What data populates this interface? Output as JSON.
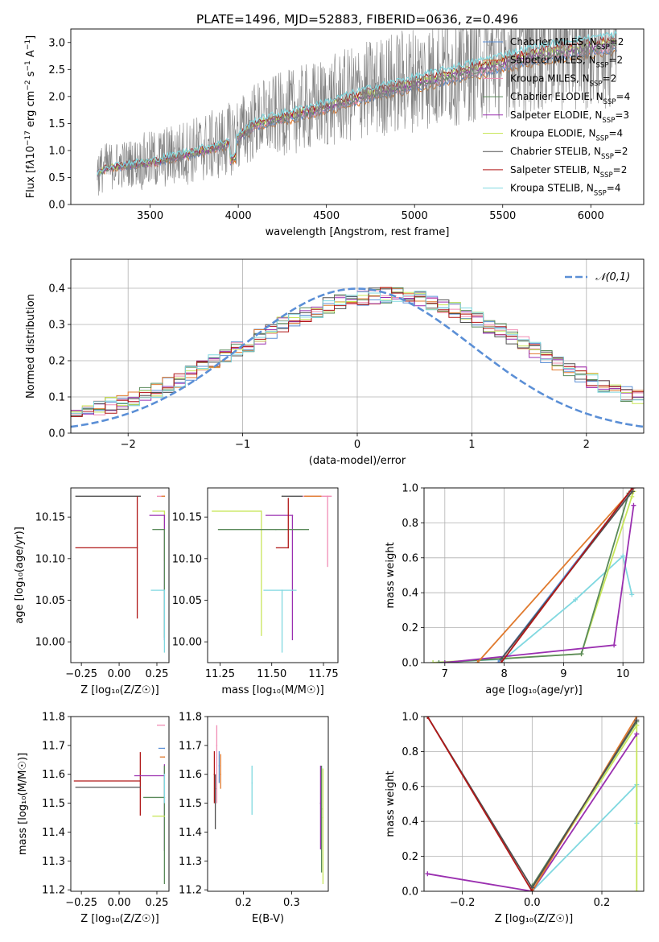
{
  "title": "PLATE=1496, MJD=52883, FIBERID=0636, z=0.496",
  "colors": {
    "Chabrier MILES": "#5b8fd6",
    "Salpeter MILES": "#e07a2e",
    "Kroupa MILES": "#f08cb4",
    "Chabrier ELODIE": "#5a8a5a",
    "Salpeter ELODIE": "#9a2fb0",
    "Kroupa ELODIE": "#c8e65a",
    "Chabrier STELIB": "#505050",
    "Salpeter STELIB": "#b01818",
    "Kroupa STELIB": "#80d8e0"
  },
  "chart_data": [
    {
      "id": "spectrum",
      "type": "line",
      "xlabel": "wavelength [Angstrom, rest frame]",
      "ylabel_html": "Flux [f<tspan font-style='italic'>λ</tspan>10<tspan baseline-shift='super' font-size='9'>−17</tspan> erg cm<tspan baseline-shift='super' font-size='9'>−2</tspan> s<tspan baseline-shift='super' font-size='9'>−1</tspan> A<tspan baseline-shift='super' font-size='9'>−1</tspan>]",
      "xlim": [
        3050,
        6300
      ],
      "ylim": [
        0,
        3.25
      ],
      "xticks": [
        3500,
        4000,
        4500,
        5000,
        5500,
        6000
      ],
      "yticks": [
        0.0,
        0.5,
        1.0,
        1.5,
        2.0,
        2.5,
        3.0
      ],
      "ytick_labels": [
        "0.0",
        "0.5",
        "1.0",
        "1.5",
        "2.0",
        "2.5",
        "3.0"
      ],
      "legend_placement": "upper right",
      "legend": [
        {
          "label": "Chabrier MILES, N",
          "sub": "SSP",
          "suffix": "=2",
          "key": "Chabrier MILES"
        },
        {
          "label": "Salpeter MILES, N",
          "sub": "SSP",
          "suffix": "=2",
          "key": "Salpeter MILES"
        },
        {
          "label": "Kroupa MILES, N",
          "sub": "SSP",
          "suffix": "=2",
          "key": "Kroupa MILES"
        },
        {
          "label": "Chabrier ELODIE, N",
          "sub": "SSP",
          "suffix": "=4",
          "key": "Chabrier ELODIE"
        },
        {
          "label": "Salpeter ELODIE, N",
          "sub": "SSP",
          "suffix": "=3",
          "key": "Salpeter ELODIE"
        },
        {
          "label": "Kroupa ELODIE, N",
          "sub": "SSP",
          "suffix": "=4",
          "key": "Kroupa ELODIE"
        },
        {
          "label": "Chabrier STELIB, N",
          "sub": "SSP",
          "suffix": "=2",
          "key": "Chabrier STELIB"
        },
        {
          "label": "Salpeter STELIB, N",
          "sub": "SSP",
          "suffix": "=2",
          "key": "Salpeter STELIB"
        },
        {
          "label": "Kroupa STELIB, N",
          "sub": "SSP",
          "suffix": "=4",
          "key": "Kroupa STELIB"
        }
      ],
      "data_range": {
        "x": [
          3200,
          6150
        ]
      },
      "continuum_anchors": {
        "x": [
          3200,
          3250,
          3400,
          3500,
          3700,
          3900,
          4000,
          4100,
          4300,
          4500,
          4700,
          4900,
          5100,
          5300,
          5500,
          5700,
          5900,
          6150
        ],
        "y": [
          0.55,
          0.65,
          0.72,
          0.75,
          0.9,
          1.05,
          1.2,
          1.45,
          1.6,
          1.75,
          1.95,
          2.1,
          2.25,
          2.4,
          2.55,
          2.7,
          2.8,
          2.9
        ]
      }
    },
    {
      "id": "residuals",
      "type": "histogram",
      "xlabel": "(data-model)/error",
      "ylabel": "Normed distribution",
      "xlim": [
        -2.5,
        2.5
      ],
      "ylim": [
        0,
        0.48
      ],
      "xticks": [
        -2,
        -1,
        0,
        1,
        2
      ],
      "xtick_labels": [
        "−2",
        "−1",
        "0",
        "1",
        "2"
      ],
      "yticks": [
        0.0,
        0.1,
        0.2,
        0.3,
        0.4
      ],
      "ytick_labels": [
        "0.0",
        "0.1",
        "0.2",
        "0.3",
        "0.4"
      ],
      "grid": true,
      "legend_placement": "upper right",
      "reference_curve": {
        "label": "𝒩(0,1)",
        "style": "dashed",
        "color": "#5b8fd6"
      },
      "bins": 50
    },
    {
      "id": "age_vs_Z",
      "type": "errorbar",
      "xlabel": "Z [log₁₀(Z/Z☉)]",
      "ylabel": "age  [log₁₀(age/yr)]",
      "xlim": [
        -0.32,
        0.33
      ],
      "ylim": [
        9.975,
        10.185
      ],
      "xticks": [
        -0.25,
        0.0,
        0.25
      ],
      "xtick_labels": [
        "−0.25",
        "0.00",
        "0.25"
      ],
      "yticks": [
        10.0,
        10.05,
        10.1,
        10.15
      ],
      "ytick_labels": [
        "10.00",
        "10.05",
        "10.10",
        "10.15"
      ],
      "points": [
        {
          "key": "Chabrier STELIB",
          "x": 0.14,
          "xerr": [
            0.43,
            0.0
          ],
          "y": 10.175,
          "yerr": [
            0.0,
            0.0
          ]
        },
        {
          "key": "Salpeter STELIB",
          "x": 0.12,
          "xerr": [
            0.41,
            0.0
          ],
          "y": 10.113,
          "yerr": [
            0.085,
            0.062
          ]
        },
        {
          "key": "Kroupa MILES",
          "x": 0.3,
          "xerr": [
            0.05,
            0.0
          ],
          "y": 10.175,
          "yerr": [
            0.0,
            0.0
          ]
        },
        {
          "key": "Kroupa ELODIE",
          "x": 0.3,
          "xerr": [
            0.08,
            0.0
          ],
          "y": 10.157,
          "yerr": [
            0.06,
            0.0
          ]
        },
        {
          "key": "Salpeter ELODIE",
          "x": 0.3,
          "xerr": [
            0.1,
            0.0
          ],
          "y": 10.152,
          "yerr": [
            0.15,
            0.0
          ]
        },
        {
          "key": "Chabrier ELODIE",
          "x": 0.3,
          "xerr": [
            0.08,
            0.0
          ],
          "y": 10.135,
          "yerr": [
            0.13,
            0.0
          ]
        },
        {
          "key": "Kroupa STELIB",
          "x": 0.3,
          "xerr": [
            0.09,
            0.0
          ],
          "y": 10.062,
          "yerr": [
            0.075,
            0.0
          ]
        },
        {
          "key": "Salpeter MILES",
          "x": 0.3,
          "xerr": [
            0.02,
            0.0
          ],
          "y": 10.175,
          "yerr": [
            0.0,
            0.0
          ]
        }
      ]
    },
    {
      "id": "age_vs_mass",
      "type": "errorbar",
      "xlabel": "mass [log₁₀(M/M☉)]",
      "xlim": [
        11.19,
        11.82
      ],
      "ylim": [
        9.975,
        10.185
      ],
      "xticks": [
        11.25,
        11.5,
        11.75
      ],
      "xtick_labels": [
        "11.25",
        "11.50",
        "11.75"
      ],
      "yticks": [
        10.0,
        10.05,
        10.1,
        10.15
      ],
      "ytick_labels": [
        "10.00",
        "10.05",
        "10.10",
        "10.15"
      ],
      "points": [
        {
          "key": "Chabrier STELIB",
          "x": 11.55,
          "xerr": [
            0.0,
            0.1
          ],
          "y": 10.175,
          "yerr": [
            0.0,
            0.0
          ]
        },
        {
          "key": "Kroupa MILES",
          "x": 11.77,
          "xerr": [
            0.12,
            0.02
          ],
          "y": 10.175,
          "yerr": [
            0.085,
            0.0
          ]
        },
        {
          "key": "Salpeter MILES",
          "x": 11.66,
          "xerr": [
            0.0,
            0.08
          ],
          "y": 10.175,
          "yerr": [
            0.0,
            0.0
          ]
        },
        {
          "key": "Kroupa ELODIE",
          "x": 11.45,
          "xerr": [
            0.24,
            0.0
          ],
          "y": 10.157,
          "yerr": [
            0.15,
            0.0
          ]
        },
        {
          "key": "Salpeter ELODIE",
          "x": 11.6,
          "xerr": [
            0.13,
            0.0
          ],
          "y": 10.152,
          "yerr": [
            0.15,
            0.0
          ]
        },
        {
          "key": "Chabrier ELODIE",
          "x": 11.52,
          "xerr": [
            0.28,
            0.16
          ],
          "y": 10.135,
          "yerr": [
            0.0,
            0.0
          ]
        },
        {
          "key": "Salpeter STELIB",
          "x": 11.58,
          "xerr": [
            0.06,
            0.0
          ],
          "y": 10.113,
          "yerr": [
            0.0,
            0.06
          ]
        },
        {
          "key": "Kroupa STELIB",
          "x": 11.55,
          "xerr": [
            0.09,
            0.07
          ],
          "y": 10.062,
          "yerr": [
            0.075,
            0.0
          ]
        }
      ]
    },
    {
      "id": "massweight_vs_age",
      "type": "line",
      "xlabel": "age  [log₁₀(age/yr)]",
      "ylabel": "mass weight",
      "xlim": [
        6.65,
        10.35
      ],
      "ylim": [
        0.0,
        1.0
      ],
      "xticks": [
        7,
        8,
        9,
        10
      ],
      "yticks": [
        0.0,
        0.2,
        0.4,
        0.6,
        0.8,
        1.0
      ],
      "ytick_labels": [
        "0.0",
        "0.2",
        "0.4",
        "0.6",
        "0.8",
        "1.0"
      ],
      "grid": true,
      "series": [
        {
          "key": "Kroupa STELIB",
          "x": [
            6.8,
            8.0,
            9.2,
            10.0,
            10.15
          ],
          "y": [
            0.0,
            0.02,
            0.36,
            0.61,
            0.39
          ]
        },
        {
          "key": "Kroupa ELODIE",
          "x": [
            6.8,
            9.3,
            10.15,
            10.18
          ],
          "y": [
            0.0,
            0.05,
            0.95,
            0.98
          ]
        },
        {
          "key": "Chabrier ELODIE",
          "x": [
            6.9,
            9.3,
            10.1
          ],
          "y": [
            0.0,
            0.05,
            0.97
          ]
        },
        {
          "key": "Salpeter ELODIE",
          "x": [
            7.0,
            9.85,
            10.18
          ],
          "y": [
            0.0,
            0.1,
            0.9
          ]
        },
        {
          "key": "Salpeter MILES",
          "x": [
            7.55,
            10.18
          ],
          "y": [
            0.0,
            1.0
          ]
        },
        {
          "key": "Chabrier MILES",
          "x": [
            7.9,
            10.17
          ],
          "y": [
            0.0,
            1.0
          ]
        },
        {
          "key": "Chabrier STELIB",
          "x": [
            7.95,
            10.16
          ],
          "y": [
            0.02,
            0.98
          ]
        },
        {
          "key": "Salpeter STELIB",
          "x": [
            7.95,
            10.16
          ],
          "y": [
            0.0,
            1.0
          ]
        }
      ]
    },
    {
      "id": "mass_vs_Z",
      "type": "errorbar",
      "xlabel": "Z [log₁₀(Z/Z☉)]",
      "ylabel": "mass [log₁₀(M/M☉)]",
      "xlim": [
        -0.32,
        0.33
      ],
      "ylim": [
        11.195,
        11.8
      ],
      "xticks": [
        -0.25,
        0.0,
        0.25
      ],
      "xtick_labels": [
        "−0.25",
        "0.00",
        "0.25"
      ],
      "yticks": [
        11.2,
        11.3,
        11.4,
        11.5,
        11.6,
        11.7,
        11.8
      ],
      "ytick_labels": [
        "11.2",
        "11.3",
        "11.4",
        "11.5",
        "11.6",
        "11.7",
        "11.8"
      ],
      "points": [
        {
          "key": "Kroupa MILES",
          "x": 0.3,
          "xerr": [
            0.05,
            0.0
          ],
          "y": 11.77,
          "yerr": [
            0.0,
            0.0
          ]
        },
        {
          "key": "Chabrier MILES",
          "x": 0.3,
          "xerr": [
            0.04,
            0.0
          ],
          "y": 11.69,
          "yerr": [
            0.0,
            0.0
          ]
        },
        {
          "key": "Salpeter MILES",
          "x": 0.3,
          "xerr": [
            0.03,
            0.0
          ],
          "y": 11.66,
          "yerr": [
            0.0,
            0.0
          ]
        },
        {
          "key": "Salpeter STELIB",
          "x": 0.14,
          "xerr": [
            0.44,
            0.0
          ],
          "y": 11.577,
          "yerr": [
            0.12,
            0.1
          ]
        },
        {
          "key": "Salpeter ELODIE",
          "x": 0.3,
          "xerr": [
            0.2,
            0.0
          ],
          "y": 11.595,
          "yerr": [
            0.26,
            0.04
          ]
        },
        {
          "key": "Chabrier STELIB",
          "x": 0.14,
          "xerr": [
            0.43,
            0.0
          ],
          "y": 11.555,
          "yerr": [
            0.0,
            0.0
          ]
        },
        {
          "key": "Chabrier ELODIE",
          "x": 0.3,
          "xerr": [
            0.14,
            0.0
          ],
          "y": 11.52,
          "yerr": [
            0.3,
            0.11
          ]
        },
        {
          "key": "Kroupa ELODIE",
          "x": 0.3,
          "xerr": [
            0.08,
            0.0
          ],
          "y": 11.455,
          "yerr": [
            0.0,
            0.0
          ]
        },
        {
          "key": "Kroupa STELIB",
          "x": 0.3,
          "xerr": [
            0.0,
            0.0
          ],
          "y": 11.6,
          "yerr": [
            0.1,
            0.0
          ]
        }
      ]
    },
    {
      "id": "mass_vs_ebv",
      "type": "errorbar",
      "xlabel": "E(B-V)",
      "xlim": [
        0.126,
        0.376
      ],
      "ylim": [
        11.195,
        11.8
      ],
      "xticks": [
        0.2,
        0.3
      ],
      "xtick_labels": [
        "0.2",
        "0.3"
      ],
      "yticks": [
        11.2,
        11.3,
        11.4,
        11.5,
        11.6,
        11.7,
        11.8
      ],
      "ytick_labels": [
        "11.2",
        "11.3",
        "11.4",
        "11.5",
        "11.6",
        "11.7",
        "11.8"
      ],
      "points": [
        {
          "key": "Kroupa MILES",
          "x": 0.145,
          "y": 11.7,
          "yerr": [
            0.2,
            0.07
          ]
        },
        {
          "key": "Chabrier MILES",
          "x": 0.15,
          "y": 11.63,
          "yerr": [
            0.06,
            0.05
          ]
        },
        {
          "key": "Salpeter MILES",
          "x": 0.153,
          "y": 11.6,
          "yerr": [
            0.05,
            0.07
          ]
        },
        {
          "key": "Salpeter STELIB",
          "x": 0.14,
          "y": 11.6,
          "yerr": [
            0.1,
            0.08
          ]
        },
        {
          "key": "Chabrier STELIB",
          "x": 0.142,
          "y": 11.55,
          "yerr": [
            0.14,
            0.05
          ]
        },
        {
          "key": "Kroupa STELIB",
          "x": 0.218,
          "y": 11.57,
          "yerr": [
            0.11,
            0.06
          ]
        },
        {
          "key": "Salpeter ELODIE",
          "x": 0.36,
          "y": 11.5,
          "yerr": [
            0.16,
            0.13
          ]
        },
        {
          "key": "Chabrier ELODIE",
          "x": 0.362,
          "y": 11.48,
          "yerr": [
            0.22,
            0.15
          ]
        },
        {
          "key": "Kroupa ELODIE",
          "x": 0.365,
          "y": 11.45,
          "yerr": [
            0.23,
            0.17
          ]
        }
      ]
    },
    {
      "id": "massweight_vs_Z",
      "type": "line",
      "xlabel": "Z [log₁₀(Z/Z☉)]",
      "ylabel": "mass weight",
      "xlim": [
        -0.31,
        0.32
      ],
      "ylim": [
        0.0,
        1.0
      ],
      "xticks": [
        -0.2,
        0.0,
        0.2
      ],
      "xtick_labels": [
        "−0.2",
        "0.0",
        "0.2"
      ],
      "yticks": [
        0.0,
        0.2,
        0.4,
        0.6,
        0.8,
        1.0
      ],
      "ytick_labels": [
        "0.0",
        "0.2",
        "0.4",
        "0.6",
        "0.8",
        "1.0"
      ],
      "grid": true,
      "series": [
        {
          "key": "Kroupa STELIB",
          "x": [
            0.0,
            0.3,
            0.3
          ],
          "y": [
            0.0,
            0.61,
            0.39
          ]
        },
        {
          "key": "Kroupa ELODIE",
          "x": [
            0.0,
            0.3,
            0.3
          ],
          "y": [
            0.02,
            0.95,
            0.0
          ]
        },
        {
          "key": "Chabrier ELODIE",
          "x": [
            0.0,
            0.3
          ],
          "y": [
            0.03,
            0.97
          ]
        },
        {
          "key": "Salpeter ELODIE",
          "x": [
            -0.3,
            0.0,
            0.3
          ],
          "y": [
            0.1,
            0.0,
            0.9
          ]
        },
        {
          "key": "Salpeter MILES",
          "x": [
            0.0,
            0.3
          ],
          "y": [
            0.0,
            1.0
          ]
        },
        {
          "key": "Chabrier STELIB",
          "x": [
            -0.3,
            0.0,
            0.3
          ],
          "y": [
            1.0,
            0.02,
            0.98
          ]
        },
        {
          "key": "Salpeter STELIB",
          "x": [
            -0.3,
            0.0
          ],
          "y": [
            1.0,
            0.0
          ]
        }
      ]
    }
  ]
}
